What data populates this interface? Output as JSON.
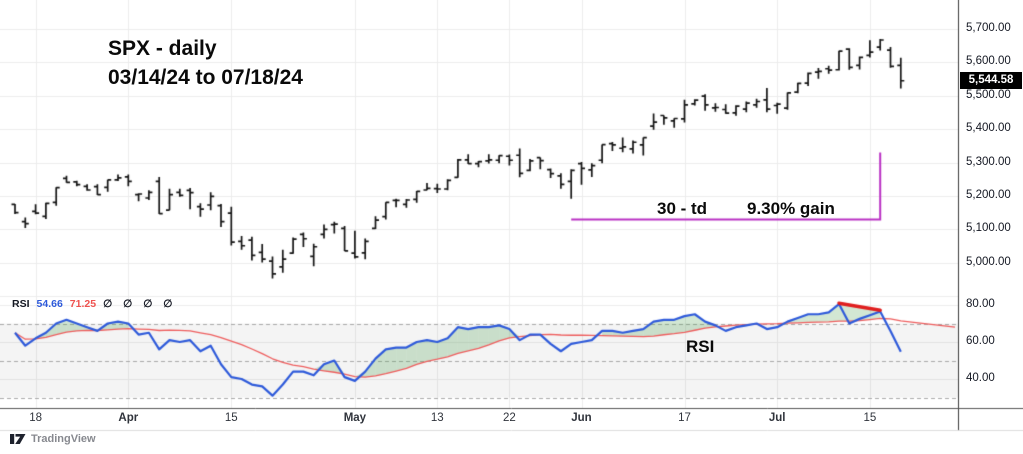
{
  "meta": {
    "title_line1": "SPX - daily",
    "title_line2": "03/14/24 to 07/18/24"
  },
  "watermark": {
    "logo_text": "TradingView"
  },
  "legend": {
    "indicator": "RSI",
    "rsi_value": "54.66",
    "ma_value": "71.25",
    "placeholders_text": "∅ ∅ ∅ ∅",
    "placeholders": [
      "∅",
      "∅",
      "∅",
      "∅"
    ]
  },
  "annotations": {
    "duration_label": "30 - td",
    "gain_label": "9.30% gain",
    "rsi_label": "RSI",
    "bracket": {
      "start_index": 54,
      "end_index": 84,
      "price": 5130,
      "top_price": 5330,
      "color": "#ba30c4"
    },
    "divergence_line": {
      "from_index": 80,
      "from_value": 81,
      "to_index": 84,
      "to_value": 77.2,
      "color": "#e01f1f"
    }
  },
  "price_axis": {
    "levels": [
      5700,
      5600,
      5500,
      5400,
      5300,
      5200,
      5100,
      5000
    ],
    "labels": [
      "5,700.00",
      "5,600.00",
      "5,500.00",
      "5,400.00",
      "5,300.00",
      "5,200.00",
      "5,100.00",
      "5,000.00"
    ],
    "current_price": 5544.58,
    "current_price_label": "5,544.58"
  },
  "rsi_axis": {
    "levels": [
      80,
      60,
      40
    ],
    "labels": [
      "80.00",
      "60.00",
      "40.00"
    ],
    "dashed_levels": [
      70,
      50,
      30
    ],
    "band": [
      30,
      70
    ]
  },
  "x_axis": {
    "ticks": [
      {
        "index": 2,
        "label": "18",
        "bold": false
      },
      {
        "index": 11,
        "label": "Apr",
        "bold": true
      },
      {
        "index": 21,
        "label": "15",
        "bold": false
      },
      {
        "index": 33,
        "label": "May",
        "bold": true
      },
      {
        "index": 41,
        "label": "13",
        "bold": false
      },
      {
        "index": 48,
        "label": "22",
        "bold": false
      },
      {
        "index": 55,
        "label": "Jun",
        "bold": true
      },
      {
        "index": 65,
        "label": "17",
        "bold": false
      },
      {
        "index": 74,
        "label": "Jul",
        "bold": true
      },
      {
        "index": 83,
        "label": "15",
        "bold": false
      }
    ]
  },
  "colors": {
    "bars": "#151515",
    "rsi_line": "#2e5ada",
    "rsi_ma_line": "#ee5c5c",
    "divergence": "#e01f1f",
    "bracket": "#ba30c4",
    "overbought_fill": "rgba(76,160,80,0.25)",
    "band_fill": "rgba(120,120,120,0.08)",
    "grid": "#ececec",
    "dashed": "#a8a8a8",
    "axis_border": "#3a3a3a",
    "time_axis_line": "#555555",
    "bottom_line": "#dddddd"
  },
  "chart_data": [
    {
      "type": "bar",
      "subtype": "ohlc",
      "symbol": "SPX",
      "timeframe": "daily",
      "range": "03/14/24 to 07/18/24",
      "ylabel": "Price",
      "ylim": [
        4900,
        5725
      ],
      "last_close": 5544.58,
      "dates": [
        "03/14",
        "03/15",
        "03/18",
        "03/19",
        "03/20",
        "03/21",
        "03/22",
        "03/25",
        "03/26",
        "03/27",
        "03/28",
        "04/01",
        "04/02",
        "04/03",
        "04/04",
        "04/05",
        "04/08",
        "04/09",
        "04/10",
        "04/11",
        "04/12",
        "04/15",
        "04/16",
        "04/17",
        "04/18",
        "04/19",
        "04/22",
        "04/23",
        "04/24",
        "04/25",
        "04/26",
        "04/29",
        "04/30",
        "05/01",
        "05/02",
        "05/03",
        "05/06",
        "05/07",
        "05/08",
        "05/09",
        "05/10",
        "05/13",
        "05/14",
        "05/15",
        "05/16",
        "05/17",
        "05/20",
        "05/21",
        "05/22",
        "05/23",
        "05/24",
        "05/28",
        "05/29",
        "05/30",
        "05/31",
        "06/03",
        "06/04",
        "06/05",
        "06/06",
        "06/07",
        "06/10",
        "06/11",
        "06/12",
        "06/13",
        "06/14",
        "06/17",
        "06/18",
        "06/20",
        "06/21",
        "06/24",
        "06/25",
        "06/26",
        "06/27",
        "06/28",
        "07/01",
        "07/02",
        "07/03",
        "07/05",
        "07/08",
        "07/09",
        "07/10",
        "07/11",
        "07/12",
        "07/15",
        "07/16",
        "07/17",
        "07/18"
      ],
      "bars": [
        [
          5175,
          5176,
          5146,
          5150
        ],
        [
          5123,
          5136,
          5104,
          5117
        ],
        [
          5154,
          5175,
          5145,
          5149
        ],
        [
          5139,
          5180,
          5131,
          5178
        ],
        [
          5181,
          5226,
          5171,
          5225
        ],
        [
          5253,
          5261,
          5240,
          5241
        ],
        [
          5242,
          5246,
          5229,
          5234
        ],
        [
          5229,
          5235,
          5216,
          5218
        ],
        [
          5228,
          5235,
          5203,
          5204
        ],
        [
          5226,
          5249,
          5213,
          5248
        ],
        [
          5248,
          5264,
          5245,
          5254
        ],
        [
          5257,
          5264,
          5229,
          5244
        ],
        [
          5204,
          5208,
          5184,
          5206
        ],
        [
          5194,
          5217,
          5188,
          5211
        ],
        [
          5244,
          5257,
          5146,
          5147
        ],
        [
          5158,
          5222,
          5157,
          5204
        ],
        [
          5211,
          5222,
          5198,
          5202
        ],
        [
          5217,
          5224,
          5160,
          5210
        ],
        [
          5168,
          5178,
          5138,
          5161
        ],
        [
          5173,
          5211,
          5157,
          5199
        ],
        [
          5171,
          5176,
          5107,
          5123
        ],
        [
          5149,
          5168,
          5052,
          5062
        ],
        [
          5064,
          5080,
          5039,
          5051
        ],
        [
          5068,
          5078,
          5007,
          5022
        ],
        [
          5031,
          5056,
          5001,
          5011
        ],
        [
          5005,
          5019,
          4953,
          4967
        ],
        [
          4988,
          5039,
          4970,
          5011
        ],
        [
          5029,
          5076,
          5027,
          5071
        ],
        [
          5085,
          5091,
          5047,
          5072
        ],
        [
          5019,
          5057,
          4990,
          5048
        ],
        [
          5085,
          5115,
          5073,
          5100
        ],
        [
          5114,
          5123,
          5088,
          5116
        ],
        [
          5103,
          5110,
          5035,
          5036
        ],
        [
          5029,
          5096,
          5013,
          5018
        ],
        [
          5030,
          5073,
          5011,
          5064
        ],
        [
          5103,
          5139,
          5101,
          5128
        ],
        [
          5138,
          5181,
          5130,
          5181
        ],
        [
          5187,
          5192,
          5166,
          5187
        ],
        [
          5175,
          5191,
          5165,
          5188
        ],
        [
          5190,
          5215,
          5180,
          5214
        ],
        [
          5218,
          5239,
          5217,
          5223
        ],
        [
          5222,
          5237,
          5209,
          5221
        ],
        [
          5221,
          5250,
          5217,
          5247
        ],
        [
          5256,
          5311,
          5255,
          5308
        ],
        [
          5308,
          5325,
          5296,
          5297
        ],
        [
          5297,
          5305,
          5286,
          5303
        ],
        [
          5305,
          5325,
          5297,
          5308
        ],
        [
          5307,
          5322,
          5298,
          5321
        ],
        [
          5319,
          5324,
          5291,
          5307
        ],
        [
          5322,
          5342,
          5256,
          5268
        ],
        [
          5277,
          5311,
          5274,
          5305
        ],
        [
          5315,
          5315,
          5280,
          5306
        ],
        [
          5279,
          5282,
          5254,
          5267
        ],
        [
          5260,
          5268,
          5222,
          5235
        ],
        [
          5244,
          5280,
          5192,
          5277
        ],
        [
          5297,
          5302,
          5234,
          5283
        ],
        [
          5278,
          5298,
          5257,
          5291
        ],
        [
          5307,
          5354,
          5298,
          5354
        ],
        [
          5357,
          5362,
          5335,
          5353
        ],
        [
          5343,
          5375,
          5331,
          5347
        ],
        [
          5341,
          5366,
          5327,
          5361
        ],
        [
          5353,
          5375,
          5321,
          5375
        ],
        [
          5409,
          5447,
          5398,
          5421
        ],
        [
          5441,
          5441,
          5413,
          5434
        ],
        [
          5425,
          5433,
          5404,
          5432
        ],
        [
          5431,
          5488,
          5420,
          5473
        ],
        [
          5476,
          5490,
          5471,
          5487
        ],
        [
          5499,
          5505,
          5455,
          5473
        ],
        [
          5464,
          5478,
          5452,
          5465
        ],
        [
          5459,
          5475,
          5446,
          5448
        ],
        [
          5449,
          5472,
          5440,
          5469
        ],
        [
          5460,
          5483,
          5451,
          5478
        ],
        [
          5473,
          5491,
          5464,
          5483
        ],
        [
          5488,
          5523,
          5451,
          5460
        ],
        [
          5471,
          5479,
          5446,
          5475
        ],
        [
          5463,
          5510,
          5458,
          5509
        ],
        [
          5511,
          5539,
          5508,
          5537
        ],
        [
          5538,
          5570,
          5529,
          5567
        ],
        [
          5571,
          5583,
          5551,
          5573
        ],
        [
          5581,
          5590,
          5566,
          5577
        ],
        [
          5578,
          5635,
          5576,
          5634
        ],
        [
          5640,
          5642,
          5578,
          5585
        ],
        [
          5591,
          5618,
          5579,
          5615
        ],
        [
          5621,
          5666,
          5615,
          5631
        ],
        [
          5646,
          5670,
          5636,
          5667
        ],
        [
          5637,
          5646,
          5584,
          5588
        ],
        [
          5591,
          5614,
          5522,
          5545
        ]
      ]
    },
    {
      "type": "line",
      "name": "RSI-14",
      "ma_name": "RSI SMA-14",
      "ylim": [
        20,
        90
      ],
      "last_value": 54.66,
      "last_ma_value": 71.25,
      "ma_window": 14,
      "ma_end_extension_value": 68,
      "values": [
        65,
        58,
        62,
        65,
        70,
        72,
        70,
        68,
        66,
        70,
        71,
        70,
        64,
        65,
        56,
        61,
        60,
        61,
        55,
        58,
        48,
        41,
        40,
        37,
        36,
        31,
        37,
        44,
        44,
        42,
        48,
        50,
        41,
        39,
        44,
        51,
        56,
        57,
        57,
        60,
        61,
        60,
        62,
        68,
        67,
        68,
        68,
        69,
        67,
        61,
        64,
        64,
        59,
        55,
        59,
        60,
        61,
        66,
        66,
        65,
        66,
        67,
        71,
        72,
        72,
        74,
        75,
        71,
        69,
        66,
        68,
        69,
        70,
        67,
        68,
        71,
        73,
        75,
        75,
        76,
        80.5,
        70,
        72.5,
        74.5,
        76.5,
        66,
        54.7
      ]
    }
  ]
}
